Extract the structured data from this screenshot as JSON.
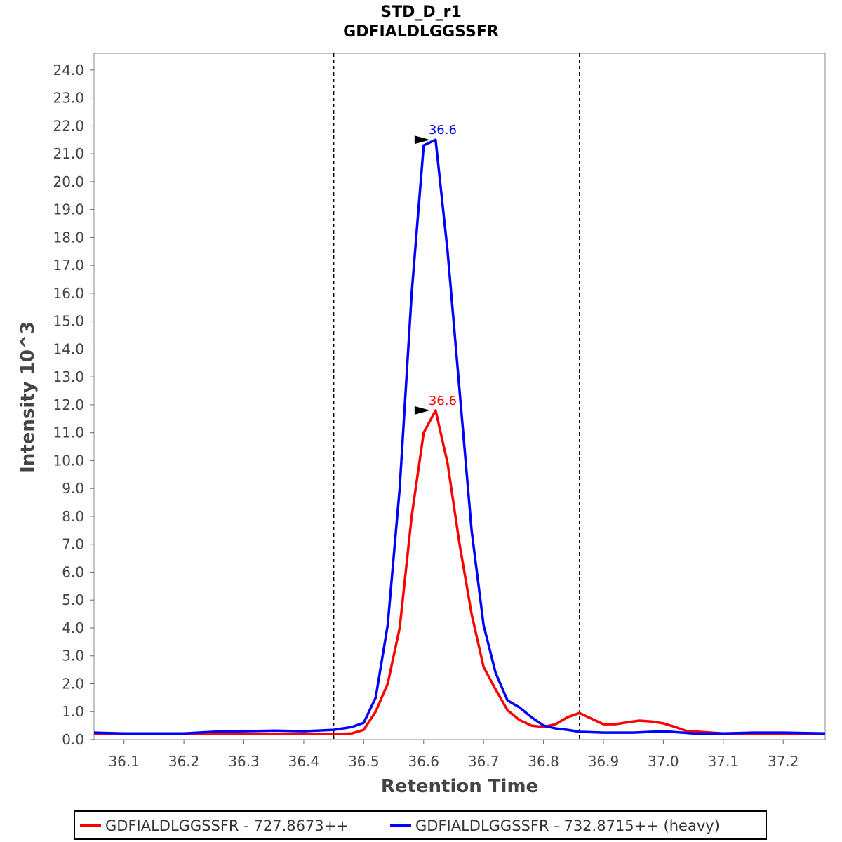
{
  "chart_data": {
    "type": "line",
    "title": "STD_D_r1",
    "subtitle": "GDFIALDLGGSSFR",
    "xlabel": "Retention Time",
    "ylabel": "Intensity 10^3",
    "xlim": [
      36.05,
      37.27
    ],
    "ylim": [
      0,
      24.6
    ],
    "x_ticks": [
      "36.1",
      "36.2",
      "36.3",
      "36.4",
      "36.5",
      "36.6",
      "36.7",
      "36.8",
      "36.9",
      "37.0",
      "37.1",
      "37.2"
    ],
    "x_tick_values": [
      36.1,
      36.2,
      36.3,
      36.4,
      36.5,
      36.6,
      36.7,
      36.8,
      36.9,
      37.0,
      37.1,
      37.2
    ],
    "y_ticks": [
      "0.0",
      "1.0",
      "2.0",
      "3.0",
      "4.0",
      "5.0",
      "6.0",
      "7.0",
      "8.0",
      "9.0",
      "10.0",
      "11.0",
      "12.0",
      "13.0",
      "14.0",
      "15.0",
      "16.0",
      "17.0",
      "18.0",
      "19.0",
      "20.0",
      "21.0",
      "22.0",
      "23.0",
      "24.0"
    ],
    "y_tick_values": [
      0,
      1,
      2,
      3,
      4,
      5,
      6,
      7,
      8,
      9,
      10,
      11,
      12,
      13,
      14,
      15,
      16,
      17,
      18,
      19,
      20,
      21,
      22,
      23,
      24
    ],
    "boundaries": [
      36.45,
      36.86
    ],
    "grid": false,
    "legend_position": "bottom",
    "series": [
      {
        "name": "GDFIALDLGGSSFR - 727.8673++",
        "color": "#ff0000",
        "peak_x": 36.62,
        "peak_y": 11.8,
        "peak_label": "36.6",
        "x": [
          36.05,
          36.1,
          36.2,
          36.3,
          36.4,
          36.46,
          36.48,
          36.5,
          36.52,
          36.54,
          36.56,
          36.58,
          36.6,
          36.62,
          36.64,
          36.66,
          36.68,
          36.7,
          36.72,
          36.74,
          36.76,
          36.78,
          36.8,
          36.82,
          36.84,
          36.86,
          36.88,
          36.9,
          36.92,
          36.94,
          36.96,
          36.98,
          37.0,
          37.02,
          37.04,
          37.06,
          37.08,
          37.1,
          37.15,
          37.2,
          37.27
        ],
        "y": [
          0.22,
          0.2,
          0.2,
          0.2,
          0.2,
          0.2,
          0.22,
          0.35,
          1.0,
          2.0,
          4.0,
          8.0,
          11.0,
          11.8,
          9.9,
          7.0,
          4.5,
          2.6,
          1.8,
          1.05,
          0.7,
          0.5,
          0.45,
          0.55,
          0.8,
          0.95,
          0.75,
          0.55,
          0.55,
          0.62,
          0.68,
          0.65,
          0.58,
          0.45,
          0.3,
          0.28,
          0.25,
          0.22,
          0.2,
          0.22,
          0.2
        ]
      },
      {
        "name": "GDFIALDLGGSSFR - 732.8715++ (heavy)",
        "color": "#0000ff",
        "peak_x": 36.62,
        "peak_y": 21.5,
        "peak_label": "36.6",
        "x": [
          36.05,
          36.1,
          36.2,
          36.25,
          36.3,
          36.35,
          36.4,
          36.45,
          36.48,
          36.5,
          36.52,
          36.54,
          36.56,
          36.58,
          36.6,
          36.62,
          36.64,
          36.66,
          36.68,
          36.7,
          36.72,
          36.74,
          36.76,
          36.78,
          36.8,
          36.82,
          36.84,
          36.86,
          36.9,
          36.95,
          37.0,
          37.05,
          37.1,
          37.15,
          37.2,
          37.27
        ],
        "y": [
          0.25,
          0.22,
          0.22,
          0.28,
          0.3,
          0.32,
          0.3,
          0.35,
          0.45,
          0.6,
          1.5,
          4.1,
          9.0,
          16.0,
          21.3,
          21.5,
          17.5,
          12.5,
          7.5,
          4.1,
          2.4,
          1.4,
          1.15,
          0.8,
          0.5,
          0.4,
          0.35,
          0.28,
          0.25,
          0.25,
          0.3,
          0.22,
          0.22,
          0.25,
          0.25,
          0.22
        ]
      }
    ]
  }
}
